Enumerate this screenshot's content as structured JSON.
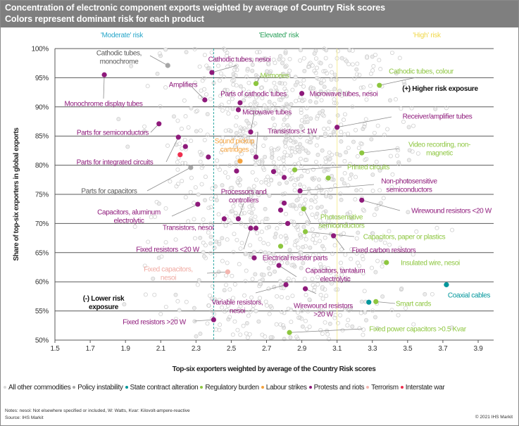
{
  "header": {
    "title": "Concentration of electronic component exports weighted by average of Country Risk scores",
    "subtitle": "Colors represent dominant risk for each product"
  },
  "chart_data": {
    "type": "scatter",
    "title": "Concentration of electronic component exports weighted by average of Country Risk scores",
    "xlabel": "Top-six exporters weighted by average of the Country Risk scores",
    "ylabel": "Share of top-six exporters in global exports",
    "xlim": [
      1.5,
      3.9
    ],
    "ylim": [
      50,
      100
    ],
    "xticks": [
      "1.5",
      "1.7",
      "1.9",
      "2.1",
      "2.3",
      "2.5",
      "2.7",
      "2.9",
      "3.1",
      "3.3",
      "3.5",
      "3.7",
      "3.9"
    ],
    "yticks": [
      "50%",
      "55%",
      "60%",
      "65%",
      "70%",
      "75%",
      "80%",
      "85%",
      "90%",
      "95%",
      "100%"
    ],
    "grid": "horizontal",
    "zones": [
      {
        "label": "'Moderate' risk",
        "x": 1.5,
        "color": "#27a6c9"
      },
      {
        "label": "'Elevated' risk",
        "x": 2.4,
        "color": "#2aa05a"
      },
      {
        "label": "'High' risk",
        "x": 3.1,
        "color": "#f1d84a"
      }
    ],
    "annotations": [
      {
        "text": "(+) Higher risk exposure"
      },
      {
        "text": [
          "(-) Lower risk",
          "exposure"
        ]
      }
    ],
    "legend_position": "bottom",
    "series": [
      {
        "key": "other",
        "name": "All other commodities",
        "color": "#d9d9d9"
      },
      {
        "key": "policy",
        "name": "Policy instability",
        "color": "#a6a6a6"
      },
      {
        "key": "state",
        "name": "State contract alteration",
        "color": "#00969b"
      },
      {
        "key": "regulatory",
        "name": "Regulatory burden",
        "color": "#8dc63f"
      },
      {
        "key": "labour",
        "name": "Labour strikes",
        "color": "#f4a23c"
      },
      {
        "key": "protests",
        "name": "Protests and riots",
        "color": "#8e1a7b"
      },
      {
        "key": "terrorism",
        "name": "Terrorism",
        "color": "#f4b6b0"
      },
      {
        "key": "interstate",
        "name": "Interstate war",
        "color": "#ee2e4e"
      }
    ],
    "points": [
      {
        "label": [
          "Cathodic tubes,",
          "monochrome"
        ],
        "x": 2.14,
        "y": 97.1,
        "risk": "policy"
      },
      {
        "label": [
          "Monochrome display tubes"
        ],
        "x": 1.78,
        "y": 95.5,
        "risk": "protests"
      },
      {
        "label": [
          "Cathodic tubes, nesoi"
        ],
        "x": 2.39,
        "y": 95.9,
        "risk": "protests"
      },
      {
        "label": [
          "Memories"
        ],
        "x": 2.64,
        "y": 94.0,
        "risk": "regulatory"
      },
      {
        "label": [
          "Cathodic tubes, colour"
        ],
        "x": 3.34,
        "y": 93.7,
        "risk": "regulatory"
      },
      {
        "label": [
          "Amplifiers"
        ],
        "x": 2.35,
        "y": 91.2,
        "risk": "protests"
      },
      {
        "label": [
          "Parts of cathodic tubes"
        ],
        "x": 2.55,
        "y": 90.7,
        "risk": "protests"
      },
      {
        "label": [
          "Microwave tubes, nesoi"
        ],
        "x": 2.9,
        "y": 92.3,
        "risk": "protests"
      },
      {
        "label": [
          "Microwave tubes"
        ],
        "x": 2.61,
        "y": 85.7,
        "risk": "protests"
      },
      {
        "label": [
          "Receiver/amplifier tubes"
        ],
        "x": 3.1,
        "y": 86.5,
        "risk": "protests"
      },
      {
        "label": [
          "Transistors < 1W"
        ],
        "x": 2.64,
        "y": 81.4,
        "risk": "protests"
      },
      {
        "label": [
          "Parts for semiconductors"
        ],
        "x": 2.09,
        "y": 87.1,
        "risk": "protests"
      },
      {
        "label": [
          "Parts for integrated circuits"
        ],
        "x": 2.2,
        "y": 84.8,
        "risk": "protests"
      },
      {
        "label": [
          "Sound pickup",
          "cartridges"
        ],
        "x": 2.55,
        "y": 80.7,
        "risk": "labour"
      },
      {
        "label": [
          "Video recording, non-",
          "magnetic"
        ],
        "x": 3.24,
        "y": 82.1,
        "risk": "regulatory"
      },
      {
        "label": [
          "Parts for capacitors"
        ],
        "x": 2.27,
        "y": 79.6,
        "risk": "policy"
      },
      {
        "label": [
          "Printed circuits"
        ],
        "x": 2.86,
        "y": 79.2,
        "risk": "regulatory"
      },
      {
        "label": [
          "Non-photosensitive",
          "semiconductors"
        ],
        "x": 2.89,
        "y": 75.6,
        "risk": "protests"
      },
      {
        "label": [
          "Processors and",
          "controllers"
        ],
        "x": 2.54,
        "y": 70.8,
        "risk": "protests"
      },
      {
        "label": [
          "Transistors, nesoi"
        ],
        "x": 2.46,
        "y": 70.8,
        "risk": "protests"
      },
      {
        "label": [
          "Capacitors, aluminum",
          "electrolytic"
        ],
        "x": 2.31,
        "y": 73.3,
        "risk": "protests"
      },
      {
        "label": [
          "Wirewound resistors <20 W"
        ],
        "x": 3.24,
        "y": 74.0,
        "risk": "protests"
      },
      {
        "label": [
          "Photosensitive",
          "semiconductors"
        ],
        "x": 2.91,
        "y": 72.5,
        "risk": "regulatory"
      },
      {
        "label": [
          "Fixed resistors <20 W"
        ],
        "x": 2.61,
        "y": 69.2,
        "risk": "protests"
      },
      {
        "label": [
          "Capacitors, paper or plastics"
        ],
        "x": 2.92,
        "y": 68.6,
        "risk": "regulatory"
      },
      {
        "label": [
          "Fixed carbon resistors"
        ],
        "x": 3.08,
        "y": 67.9,
        "risk": "protests"
      },
      {
        "label": [
          "Electrical resistor parts"
        ],
        "x": 2.63,
        "y": 64.1,
        "risk": "protests"
      },
      {
        "label": [
          "Insulated wire, nesoi"
        ],
        "x": 3.38,
        "y": 63.3,
        "risk": "regulatory"
      },
      {
        "label": [
          "Fixed capacitors,",
          "nesoi"
        ],
        "x": 2.48,
        "y": 61.7,
        "risk": "terrorism"
      },
      {
        "label": [
          "Capacitors, tantalum",
          "electrolytic"
        ],
        "x": 2.77,
        "y": 62.8,
        "risk": "protests"
      },
      {
        "label": [
          "Coaxial cables"
        ],
        "x": 3.72,
        "y": 59.5,
        "risk": "state"
      },
      {
        "label": [
          "Variable resistors,",
          "nesoi"
        ],
        "x": 2.81,
        "y": 59.5,
        "risk": "protests"
      },
      {
        "label": [
          "Wirewound resistors",
          ">20 W"
        ],
        "x": 2.92,
        "y": 58.8,
        "risk": "protests"
      },
      {
        "label": [
          "Smart cards"
        ],
        "x": 3.32,
        "y": 56.6,
        "risk": "regulatory"
      },
      {
        "label": [
          "Fixed resistors >20 W"
        ],
        "x": 2.4,
        "y": 53.5,
        "risk": "protests"
      },
      {
        "label": [
          "Fixed power capacitors >0.5 Kvar"
        ],
        "x": 2.83,
        "y": 51.3,
        "risk": "regulatory"
      },
      {
        "x": 2.24,
        "y": 83.2,
        "risk": "protests"
      },
      {
        "x": 2.37,
        "y": 81.4,
        "risk": "protests"
      },
      {
        "x": 2.53,
        "y": 79.0,
        "risk": "protests"
      },
      {
        "x": 2.74,
        "y": 78.9,
        "risk": "protests"
      },
      {
        "x": 2.8,
        "y": 77.9,
        "risk": "protests"
      },
      {
        "x": 2.8,
        "y": 73.5,
        "risk": "protests"
      },
      {
        "x": 2.78,
        "y": 72.3,
        "risk": "protests"
      },
      {
        "x": 2.82,
        "y": 70.0,
        "risk": "protests"
      },
      {
        "x": 2.64,
        "y": 69.2,
        "risk": "protests"
      },
      {
        "x": 2.54,
        "y": 89.5,
        "risk": "protests"
      },
      {
        "x": 2.21,
        "y": 81.8,
        "risk": "interstate"
      },
      {
        "x": 3.05,
        "y": 77.8,
        "risk": "regulatory"
      },
      {
        "x": 2.78,
        "y": 66.1,
        "risk": "regulatory"
      },
      {
        "x": 3.28,
        "y": 56.5,
        "risk": "state"
      }
    ]
  },
  "footer": {
    "notes": "Notes: nesoi: Not elsewhere specified or included, W: Watts, Kvar: Kilovolt-ampere-reactive",
    "source": "Source: IHS Markit",
    "copyright": "© 2021 IHS Markit"
  }
}
